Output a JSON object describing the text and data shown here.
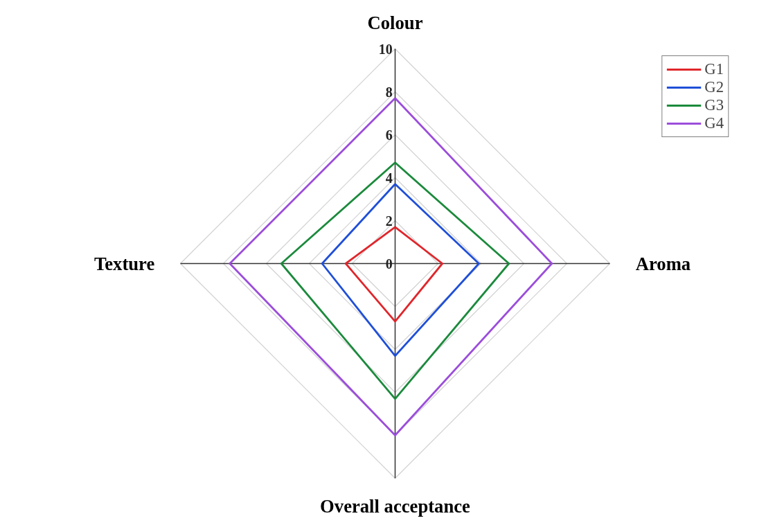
{
  "chart_data": {
    "type": "radar",
    "categories": [
      "Colour",
      "Aroma",
      "Overall acceptance",
      "Texture"
    ],
    "ylim": [
      0,
      10
    ],
    "yticks": [
      {
        "value": 0,
        "label": "0"
      },
      {
        "value": 2,
        "label": "2"
      },
      {
        "value": 4,
        "label": "4"
      },
      {
        "value": 6,
        "label": "6"
      },
      {
        "value": 8,
        "label": "8"
      },
      {
        "value": 10,
        "label": "10"
      }
    ],
    "grid": true,
    "legend": "top right",
    "marker": "none",
    "line_style": "solid",
    "series": [
      {
        "name": "G1",
        "color": "#e0262b",
        "values": [
          1.7,
          2.2,
          2.7,
          2.3
        ]
      },
      {
        "name": "G2",
        "color": "#1f4fd8",
        "values": [
          3.7,
          3.9,
          4.3,
          3.4
        ]
      },
      {
        "name": "G3",
        "color": "#1b8a3c",
        "values": [
          4.7,
          5.3,
          6.3,
          5.3
        ]
      },
      {
        "name": "G4",
        "color": "#9b4ddb",
        "values": [
          7.7,
          7.3,
          8.0,
          7.7
        ]
      }
    ]
  }
}
